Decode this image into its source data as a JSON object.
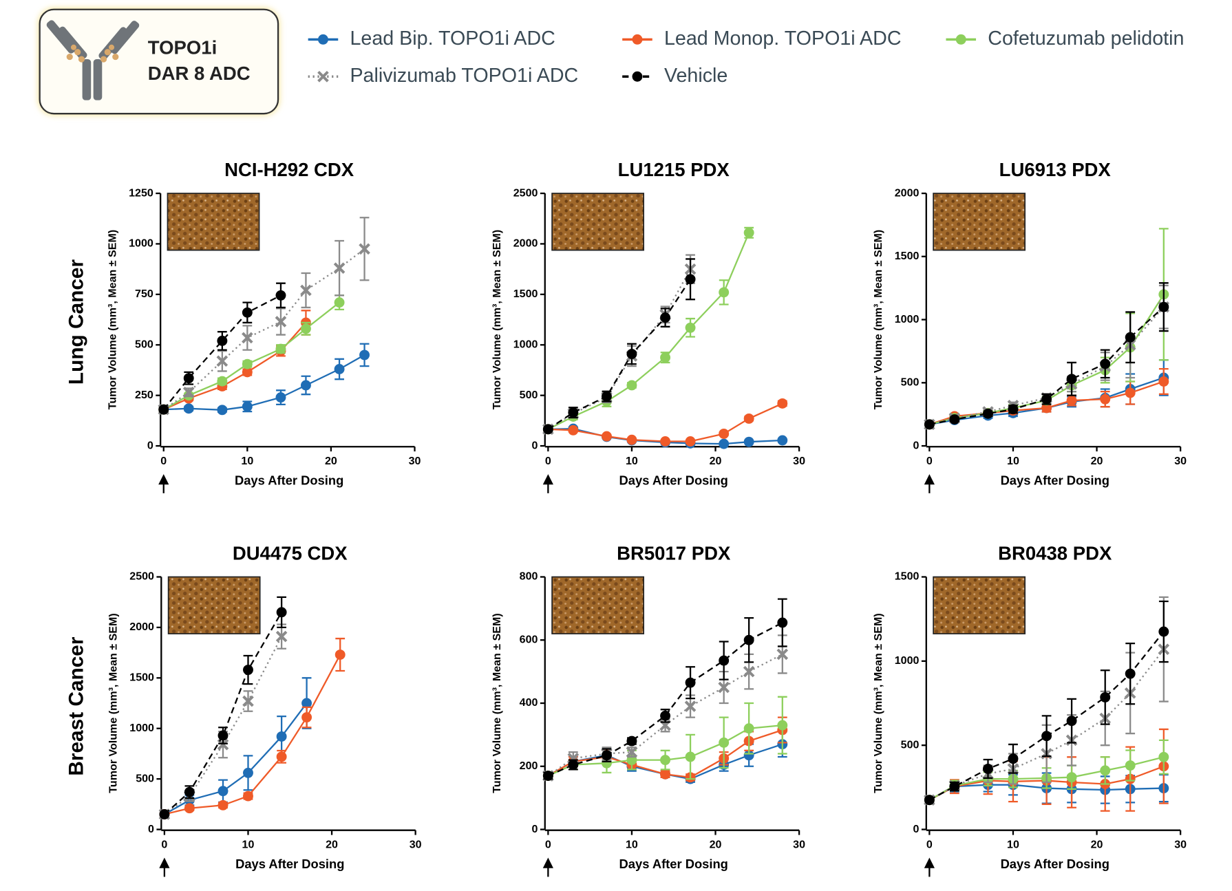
{
  "header": {
    "lines": [
      "TOPO1i",
      "DAR 8 ADC"
    ]
  },
  "row_labels": [
    "Lung Cancer",
    "Breast Cancer"
  ],
  "chart_data": [
    {
      "type": "line",
      "title": "NCI-H292 CDX",
      "x_label": "Days After Dosing",
      "y_label": "Tumor Volume (mm³, Mean ± SEM)",
      "x": [
        0,
        3,
        7,
        10,
        14,
        17,
        21,
        24
      ],
      "xlim": [
        0,
        30
      ],
      "xticks": [
        0,
        10,
        20,
        30
      ],
      "ylim": [
        0,
        1250
      ],
      "yticks": [
        0,
        250,
        500,
        750,
        1000,
        1250
      ],
      "series": [
        {
          "name": "Lead Bip. TOPO1i ADC",
          "color": "#1f6db5",
          "marker": "circle",
          "dash": "solid",
          "values": [
            180,
            185,
            178,
            195,
            240,
            300,
            380,
            450
          ],
          "errors": [
            10,
            10,
            10,
            25,
            35,
            45,
            50,
            55
          ]
        },
        {
          "name": "Lead Monop. TOPO1i ADC",
          "color": "#ef5a28",
          "marker": "circle",
          "dash": "solid",
          "values": [
            180,
            235,
            295,
            365,
            470,
            610,
            null,
            null
          ],
          "errors": [
            10,
            10,
            15,
            15,
            25,
            60,
            null,
            null
          ]
        },
        {
          "name": "Cofetuzumab pelidotin",
          "color": "#8dcf5c",
          "marker": "circle",
          "dash": "solid",
          "values": [
            180,
            250,
            320,
            405,
            480,
            580,
            710,
            null
          ],
          "errors": [
            10,
            10,
            15,
            15,
            20,
            30,
            35,
            null
          ]
        },
        {
          "name": "Palivizumab TOPO1i ADC",
          "color": "#8a8a8a",
          "marker": "x",
          "dash": "dotted",
          "values": [
            180,
            265,
            420,
            535,
            615,
            770,
            880,
            975
          ],
          "errors": [
            10,
            20,
            50,
            60,
            65,
            85,
            135,
            155
          ]
        },
        {
          "name": "Vehicle",
          "color": "#000000",
          "marker": "circle",
          "dash": "dashed",
          "values": [
            180,
            335,
            520,
            660,
            745,
            null,
            null,
            null
          ],
          "errors": [
            10,
            30,
            45,
            50,
            60,
            null,
            null,
            null
          ]
        }
      ]
    },
    {
      "type": "line",
      "title": "LU1215 PDX",
      "x_label": "Days After Dosing",
      "y_label": "Tumor Volume (mm³, Mean ± SEM)",
      "x": [
        0,
        3,
        7,
        10,
        14,
        17,
        21,
        24,
        28
      ],
      "xlim": [
        0,
        30
      ],
      "xticks": [
        0,
        10,
        20,
        30
      ],
      "ylim": [
        0,
        2500
      ],
      "yticks": [
        0,
        500,
        1000,
        1500,
        2000,
        2500
      ],
      "series": [
        {
          "color": "#1f6db5",
          "marker": "circle",
          "dash": "solid",
          "values": [
            165,
            170,
            90,
            55,
            35,
            25,
            20,
            40,
            55
          ],
          "errors": [
            15,
            15,
            10,
            10,
            10,
            10,
            10,
            10,
            10
          ]
        },
        {
          "color": "#ef5a28",
          "marker": "circle",
          "dash": "solid",
          "values": [
            165,
            155,
            95,
            60,
            45,
            45,
            120,
            270,
            420
          ],
          "errors": [
            15,
            15,
            10,
            10,
            10,
            10,
            15,
            20,
            25
          ]
        },
        {
          "color": "#8dcf5c",
          "marker": "circle",
          "dash": "solid",
          "values": [
            165,
            290,
            440,
            600,
            875,
            1170,
            1520,
            2110,
            null
          ],
          "errors": [
            15,
            30,
            50,
            25,
            50,
            90,
            120,
            50,
            null
          ]
        },
        {
          "color": "#8a8a8a",
          "marker": "x",
          "dash": "dotted",
          "values": [
            165,
            320,
            480,
            890,
            1300,
            1750,
            null,
            null,
            null
          ],
          "errors": [
            15,
            40,
            50,
            100,
            80,
            140,
            null,
            null,
            null
          ]
        },
        {
          "color": "#000000",
          "marker": "circle",
          "dash": "dashed",
          "values": [
            165,
            330,
            490,
            910,
            1270,
            1650,
            null,
            null,
            null
          ],
          "errors": [
            15,
            50,
            50,
            100,
            90,
            200,
            null,
            null,
            null
          ]
        }
      ]
    },
    {
      "type": "line",
      "title": "LU6913 PDX",
      "x_label": "Days After Dosing",
      "y_label": "Tumor Volume (mm³, Mean ± SEM)",
      "x": [
        0,
        3,
        7,
        10,
        14,
        17,
        21,
        24,
        28
      ],
      "xlim": [
        0,
        30
      ],
      "xticks": [
        0,
        10,
        20,
        30
      ],
      "ylim": [
        0,
        2000
      ],
      "yticks": [
        0,
        500,
        1000,
        1500,
        2000
      ],
      "series": [
        {
          "color": "#1f6db5",
          "marker": "circle",
          "dash": "solid",
          "values": [
            170,
            205,
            240,
            260,
            300,
            350,
            380,
            450,
            540
          ],
          "errors": [
            10,
            15,
            20,
            25,
            30,
            40,
            70,
            120,
            140
          ]
        },
        {
          "color": "#ef5a28",
          "marker": "circle",
          "dash": "solid",
          "values": [
            170,
            235,
            260,
            280,
            300,
            360,
            370,
            420,
            510
          ],
          "errors": [
            10,
            15,
            20,
            25,
            30,
            40,
            60,
            90,
            100
          ]
        },
        {
          "color": "#8dcf5c",
          "marker": "circle",
          "dash": "solid",
          "values": [
            170,
            220,
            260,
            300,
            360,
            480,
            600,
            780,
            1200
          ],
          "errors": [
            10,
            15,
            20,
            25,
            30,
            50,
            100,
            270,
            520
          ]
        },
        {
          "color": "#8a8a8a",
          "marker": "x",
          "dash": "dotted",
          "values": [
            170,
            220,
            270,
            320,
            380,
            490,
            630,
            800,
            1100
          ],
          "errors": [
            10,
            15,
            20,
            25,
            30,
            60,
            110,
            260,
            170
          ]
        },
        {
          "color": "#000000",
          "marker": "circle",
          "dash": "dashed",
          "values": [
            170,
            210,
            255,
            290,
            370,
            530,
            650,
            860,
            1100
          ],
          "errors": [
            10,
            15,
            20,
            30,
            40,
            130,
            110,
            200,
            190
          ]
        }
      ]
    },
    {
      "type": "line",
      "title": "DU4475 CDX",
      "x_label": "Days After Dosing",
      "y_label": "Tumor Volume (mm³, Mean ± SEM)",
      "x": [
        0,
        3,
        7,
        10,
        14,
        17,
        21
      ],
      "xlim": [
        0,
        30
      ],
      "xticks": [
        0,
        10,
        20,
        30
      ],
      "ylim": [
        0,
        2500
      ],
      "yticks": [
        0,
        500,
        1000,
        1500,
        2000,
        2500
      ],
      "series": [
        {
          "color": "#1f6db5",
          "marker": "circle",
          "dash": "solid",
          "values": [
            150,
            290,
            380,
            560,
            920,
            1250,
            null
          ],
          "errors": [
            10,
            50,
            110,
            170,
            200,
            250,
            null
          ]
        },
        {
          "color": "#ef5a28",
          "marker": "circle",
          "dash": "solid",
          "values": [
            150,
            210,
            240,
            330,
            720,
            1110,
            1730
          ],
          "errors": [
            10,
            20,
            25,
            30,
            60,
            100,
            160
          ]
        },
        {
          "color": "#8a8a8a",
          "marker": "x",
          "dash": "dotted",
          "values": [
            150,
            330,
            840,
            1270,
            1910,
            null,
            null
          ],
          "errors": [
            10,
            50,
            130,
            100,
            120,
            null,
            null
          ]
        },
        {
          "color": "#000000",
          "marker": "circle",
          "dash": "dashed",
          "values": [
            150,
            370,
            930,
            1580,
            2150,
            null,
            null
          ],
          "errors": [
            10,
            60,
            80,
            140,
            150,
            null,
            null
          ]
        }
      ]
    },
    {
      "type": "line",
      "title": "BR5017 PDX",
      "x_label": "Days After Dosing",
      "y_label": "Tumor Volume (mm³, Mean ± SEM)",
      "x": [
        0,
        3,
        7,
        10,
        14,
        17,
        21,
        24,
        28
      ],
      "xlim": [
        0,
        30
      ],
      "xticks": [
        0,
        10,
        20,
        30
      ],
      "ylim": [
        0,
        800
      ],
      "yticks": [
        0,
        200,
        400,
        600,
        800
      ],
      "series": [
        {
          "color": "#1f6db5",
          "marker": "circle",
          "dash": "solid",
          "values": [
            170,
            215,
            235,
            200,
            175,
            160,
            205,
            235,
            270
          ],
          "errors": [
            10,
            15,
            20,
            15,
            10,
            10,
            20,
            35,
            40
          ]
        },
        {
          "color": "#ef5a28",
          "marker": "circle",
          "dash": "solid",
          "values": [
            170,
            215,
            230,
            205,
            175,
            165,
            225,
            280,
            315
          ],
          "errors": [
            10,
            15,
            20,
            15,
            10,
            10,
            20,
            30,
            40
          ]
        },
        {
          "color": "#8dcf5c",
          "marker": "circle",
          "dash": "solid",
          "values": [
            170,
            205,
            210,
            220,
            220,
            230,
            275,
            320,
            330
          ],
          "errors": [
            10,
            15,
            30,
            30,
            30,
            70,
            80,
            80,
            90
          ]
        },
        {
          "color": "#8a8a8a",
          "marker": "x",
          "dash": "dotted",
          "values": [
            170,
            225,
            240,
            245,
            330,
            390,
            450,
            500,
            555
          ],
          "errors": [
            10,
            20,
            20,
            15,
            20,
            35,
            50,
            55,
            60
          ]
        },
        {
          "color": "#000000",
          "marker": "circle",
          "dash": "dashed",
          "values": [
            170,
            205,
            235,
            280,
            360,
            465,
            535,
            600,
            655
          ],
          "errors": [
            10,
            15,
            20,
            10,
            20,
            50,
            60,
            70,
            75
          ]
        }
      ]
    },
    {
      "type": "line",
      "title": "BR0438 PDX",
      "x_label": "Days After Dosing",
      "y_label": "Tumor Volume (mm³, Mean ± SEM)",
      "x": [
        0,
        3,
        7,
        10,
        14,
        17,
        21,
        24,
        28
      ],
      "xlim": [
        0,
        30
      ],
      "xticks": [
        0,
        10,
        20,
        30
      ],
      "ylim": [
        0,
        1500
      ],
      "yticks": [
        0,
        500,
        1000,
        1500
      ],
      "series": [
        {
          "color": "#1f6db5",
          "marker": "circle",
          "dash": "solid",
          "values": [
            175,
            255,
            265,
            265,
            245,
            240,
            235,
            240,
            245
          ],
          "errors": [
            10,
            30,
            40,
            60,
            90,
            80,
            80,
            80,
            80
          ]
        },
        {
          "color": "#ef5a28",
          "marker": "circle",
          "dash": "solid",
          "values": [
            175,
            255,
            290,
            285,
            290,
            280,
            270,
            300,
            375
          ],
          "errors": [
            10,
            40,
            80,
            120,
            140,
            150,
            160,
            190,
            220
          ]
        },
        {
          "color": "#8dcf5c",
          "marker": "circle",
          "dash": "solid",
          "values": [
            175,
            260,
            300,
            300,
            305,
            310,
            350,
            380,
            430
          ],
          "errors": [
            10,
            30,
            40,
            50,
            60,
            70,
            80,
            90,
            100
          ]
        },
        {
          "color": "#8a8a8a",
          "marker": "x",
          "dash": "dotted",
          "values": [
            175,
            260,
            330,
            360,
            450,
            530,
            660,
            810,
            1070
          ],
          "errors": [
            10,
            20,
            50,
            90,
            170,
            150,
            160,
            240,
            310
          ]
        },
        {
          "color": "#000000",
          "marker": "circle",
          "dash": "dashed",
          "values": [
            175,
            255,
            360,
            420,
            555,
            645,
            785,
            925,
            1175
          ],
          "errors": [
            10,
            25,
            55,
            85,
            120,
            130,
            160,
            180,
            180
          ]
        }
      ]
    }
  ]
}
